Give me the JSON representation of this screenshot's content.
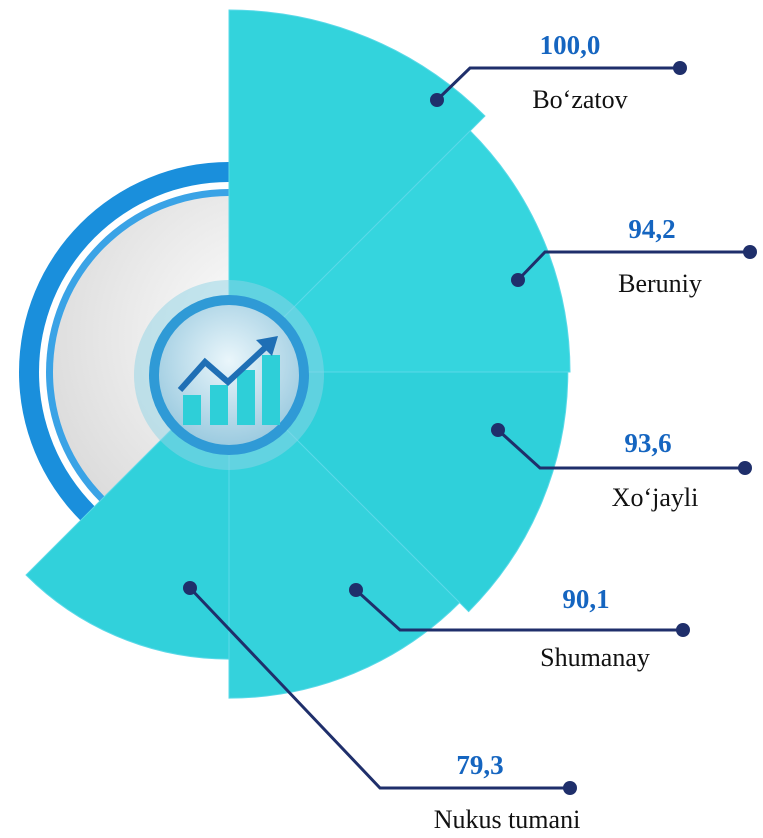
{
  "chart_data": {
    "type": "radial_bar",
    "categories": [
      "Bo‘zatov",
      "Beruniy",
      "Xo‘jayli",
      "Shumanay",
      "Nukus tumani"
    ],
    "values": [
      100.0,
      94.2,
      93.6,
      90.1,
      79.3
    ],
    "value_labels": [
      "100,0",
      "94,2",
      "93,6",
      "90,1",
      "79,3"
    ],
    "color": "#33d3dc"
  }
}
